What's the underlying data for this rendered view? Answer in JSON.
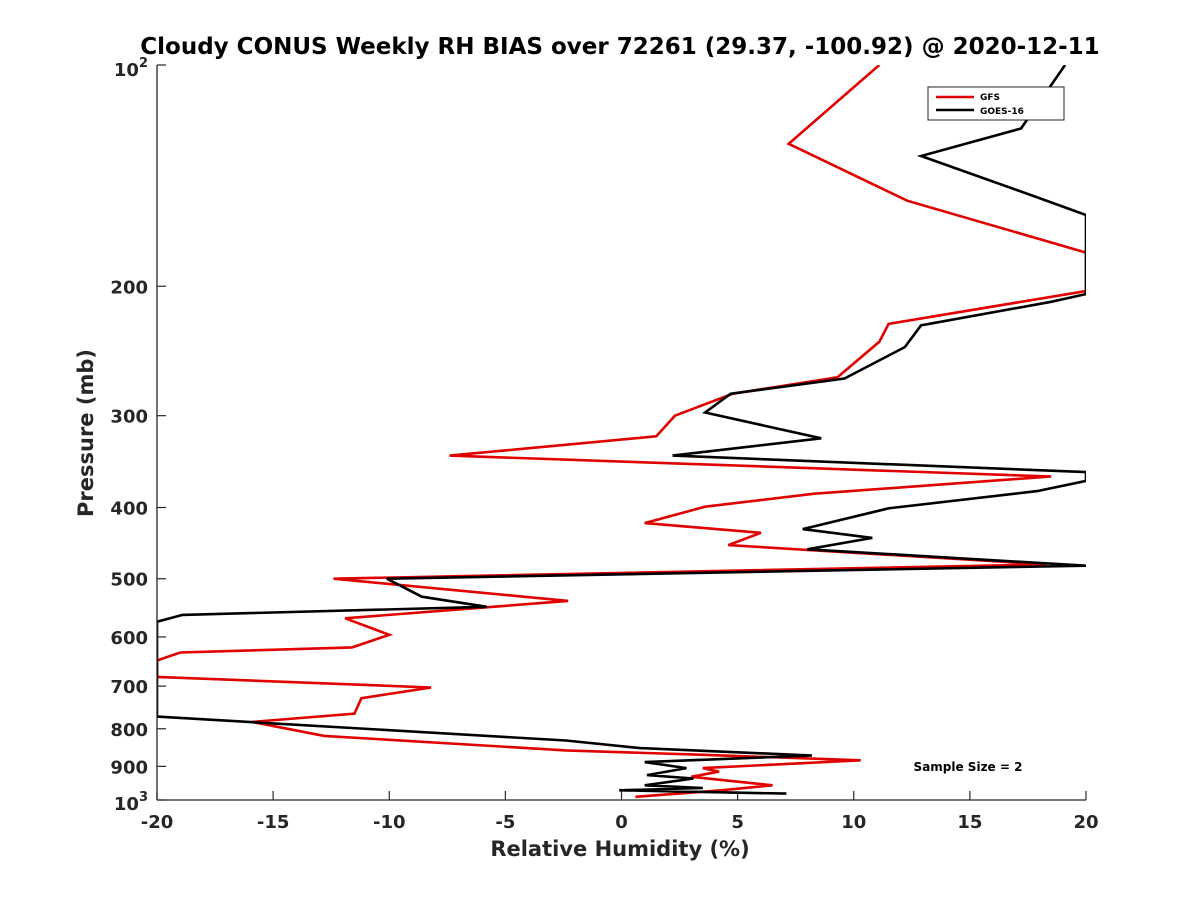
{
  "chart_data": {
    "type": "line",
    "title": "Cloudy CONUS Weekly RH BIAS over 72261 (29.37, -100.92) @ 2020-12-11",
    "xlabel": "Relative Humidity (%)",
    "ylabel": "Pressure (mb)",
    "xlim": [
      -20,
      20
    ],
    "ylim": [
      100,
      1000
    ],
    "yscale": "log",
    "y_reversed": true,
    "x_ticks": [
      "-20",
      "-15",
      "-10",
      "-5",
      "0",
      "5",
      "10",
      "15",
      "20"
    ],
    "y_tick_values": [
      200,
      300,
      400,
      500,
      600,
      700,
      800,
      900
    ],
    "y_tick_labels": [
      "200",
      "300",
      "400",
      "500",
      "600",
      "700",
      "800",
      "900"
    ],
    "y_top_label": {
      "base": "10",
      "exp": "2"
    },
    "y_bottom_label": {
      "base": "10",
      "exp": "3"
    },
    "legend": {
      "placement": "top-right",
      "entries": [
        "GFS",
        "GOES-16"
      ]
    },
    "annotation": "Sample Size = 2",
    "series": [
      {
        "name": "GFS",
        "color": "#e00000",
        "x": [
          11.1,
          7.2,
          12.3,
          20.0,
          20.0,
          11.5,
          11.1,
          9.3,
          4.8,
          2.3,
          1.5,
          -7.4,
          18.5,
          8.3,
          3.6,
          1.0,
          6.0,
          4.6,
          18.3,
          -12.4,
          -2.3,
          -11.9,
          -10.0,
          -11.6,
          -19.0,
          -20.0,
          -20.0,
          -8.2,
          -11.2,
          -11.5,
          -15.9,
          -12.8,
          -2.4,
          3.5,
          10.3,
          3.5,
          4.2,
          3.0,
          6.5,
          4.3,
          0.6
        ],
        "y": [
          100,
          128,
          153,
          180,
          203,
          225,
          238,
          266,
          280,
          300,
          320,
          340,
          363,
          383,
          399,
          420,
          433,
          450,
          478,
          500,
          536,
          566,
          596,
          620,
          630,
          646,
          680,
          703,
          727,
          763,
          783,
          818,
          856,
          868,
          883,
          905,
          915,
          930,
          955,
          970,
          990
        ]
      },
      {
        "name": "GOES-16",
        "color": "#000000",
        "x": [
          19.1,
          17.2,
          12.9,
          17.8,
          20.0,
          20.0,
          18.5,
          12.9,
          12.2,
          9.6,
          4.7,
          3.6,
          8.6,
          2.2,
          20.0,
          20.0,
          17.9,
          11.5,
          7.8,
          10.8,
          8.0,
          20.0,
          -10.1,
          -8.6,
          -5.8,
          -18.9,
          -20.0,
          -20.0,
          -2.4,
          0.8,
          8.2,
          1.0,
          2.8,
          1.1,
          3.1,
          1.0,
          3.5,
          -0.1,
          7.1
        ],
        "y": [
          100,
          122,
          133,
          151,
          160,
          205,
          210,
          226,
          242,
          267,
          280,
          297,
          322,
          340,
          358,
          368,
          380,
          401,
          428,
          440,
          456,
          480,
          500,
          529,
          546,
          560,
          572,
          770,
          830,
          850,
          870,
          888,
          905,
          925,
          935,
          955,
          963,
          970,
          980
        ]
      }
    ]
  }
}
